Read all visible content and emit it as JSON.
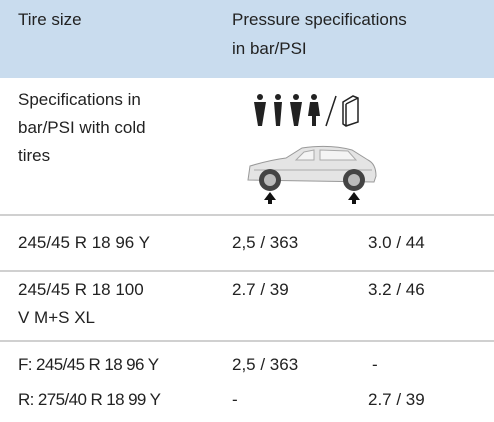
{
  "table": {
    "header": [
      [
        "Tire size"
      ],
      [
        "Pressure specifications",
        "in bar/PSI"
      ]
    ],
    "rows": [
      [
        [
          "Specifications in",
          "bar/PSI with cold",
          "tires"
        ]
      ],
      [
        [
          "245/45 R 18 96 Y"
        ],
        [
          "2,5 / 363"
        ],
        [
          "3.0 / 44"
        ]
      ],
      [
        [
          "245/45 R 18 100",
          "V M+S XL"
        ],
        [
          "2.7 / 39"
        ],
        [
          "3.2 / 46"
        ]
      ],
      [
        [
          "F: 245/45 R 18 96 Y"
        ],
        [
          "2,5 / 363"
        ],
        [
          "-"
        ]
      ],
      [
        [
          "R: 275/40 R 18 99 Y"
        ],
        [
          "-"
        ],
        [
          "2.7 / 39"
        ]
      ]
    ]
  }
}
